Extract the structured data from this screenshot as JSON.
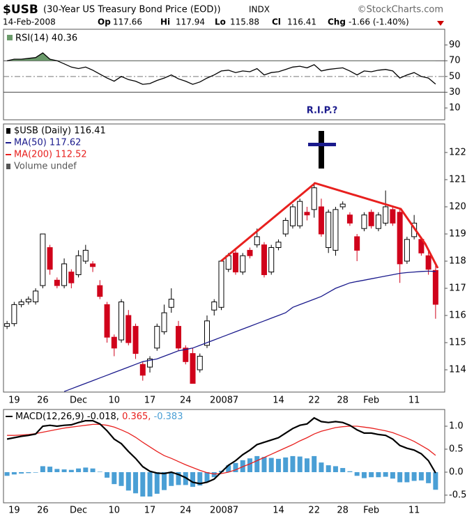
{
  "header": {
    "symbol": "$USB",
    "description": "(30-Year US Treasury Bond Price (EOD))",
    "exchange": "INDX",
    "copyright": "©StockCharts.com",
    "date": "14-Feb-2008",
    "quote": [
      {
        "label": "Op",
        "value": "117.66"
      },
      {
        "label": "Hi",
        "value": "117.94"
      },
      {
        "label": "Lo",
        "value": "115.88"
      },
      {
        "label": "Cl",
        "value": "116.41"
      },
      {
        "label": "Chg",
        "value": "-1.66 (-1.40%)"
      }
    ]
  },
  "categories": [
    null,
    "19",
    null,
    null,
    null,
    "26",
    null,
    null,
    null,
    null,
    "Dec",
    null,
    null,
    null,
    null,
    "10",
    null,
    null,
    null,
    null,
    "17",
    null,
    null,
    null,
    null,
    "24",
    null,
    null,
    null,
    null,
    "2008",
    null,
    "7",
    null,
    null,
    null,
    null,
    null,
    "14",
    null,
    null,
    null,
    null,
    "22",
    null,
    null,
    null,
    "28",
    null,
    null,
    null,
    "Feb",
    null,
    null,
    null,
    null,
    null,
    "11",
    null,
    null,
    null
  ],
  "chart_data": [
    {
      "type": "line",
      "legend": "RSI(14) 40.36",
      "ylim": [
        -5,
        110
      ],
      "yticks": [
        10,
        30,
        50,
        70,
        90
      ],
      "reference_lines": [
        30,
        50,
        70
      ],
      "fill_above": 70,
      "series": [
        {
          "color": "#000000",
          "values": [
            70,
            72,
            72,
            73,
            74,
            80,
            72,
            70,
            66,
            62,
            60,
            62,
            58,
            53,
            48,
            44,
            50,
            46,
            44,
            40,
            41,
            45,
            48,
            52,
            47,
            44,
            40,
            43,
            48,
            52,
            57,
            58,
            55,
            57,
            56,
            60,
            52,
            55,
            56,
            59,
            62,
            63,
            61,
            65,
            57,
            59,
            60,
            61,
            57,
            52,
            57,
            56,
            58,
            59,
            57,
            48,
            52,
            55,
            50,
            48,
            40.36
          ]
        }
      ]
    },
    {
      "type": "candlestick",
      "legend": [
        "$USB (Daily) 116.41",
        "MA(50) 117.62",
        "MA(200) 112.52",
        "Volume undef"
      ],
      "annotation": "R.I.P.?",
      "ylim": [
        113.18,
        123.05
      ],
      "yticks": [
        114,
        115,
        116,
        117,
        118,
        119,
        120,
        121,
        122
      ],
      "open": [
        115.6,
        115.7,
        116.4,
        116.5,
        116.5,
        117.1,
        118.5,
        117.3,
        117.1,
        117.6,
        117.5,
        118.0,
        117.9,
        117.1,
        116.4,
        115.2,
        115.1,
        116.0,
        115.6,
        114.2,
        114.1,
        114.8,
        115.4,
        116.3,
        115.6,
        114.8,
        114.6,
        114.0,
        114.9,
        116.2,
        116.3,
        117.7,
        118.3,
        117.6,
        118.4,
        118.6,
        118.6,
        117.6,
        118.5,
        119.0,
        119.3,
        119.3,
        119.8,
        119.9,
        120.0,
        118.5,
        118.4,
        120.0,
        119.7,
        118.9,
        119.2,
        119.8,
        119.2,
        119.4,
        119.9,
        119.8,
        118.0,
        118.9,
        118.8,
        118.2,
        117.66
      ],
      "high": [
        115.8,
        116.5,
        116.6,
        116.7,
        117.0,
        119.0,
        118.6,
        117.4,
        118.1,
        117.7,
        118.4,
        118.6,
        118.0,
        117.3,
        116.5,
        115.3,
        116.6,
        116.2,
        115.7,
        114.3,
        114.5,
        115.7,
        116.4,
        117.0,
        115.8,
        114.9,
        114.8,
        114.6,
        116.0,
        116.6,
        118.0,
        118.3,
        118.4,
        118.3,
        118.5,
        119.2,
        118.7,
        118.6,
        118.8,
        119.6,
        120.1,
        120.3,
        120.0,
        120.9,
        120.3,
        119.9,
        120.0,
        120.2,
        119.8,
        119.0,
        119.8,
        119.9,
        119.8,
        120.6,
        120.0,
        119.9,
        118.9,
        119.7,
        118.9,
        118.4,
        117.94
      ],
      "low": [
        115.5,
        115.6,
        116.3,
        116.4,
        116.4,
        117.0,
        117.5,
        117.0,
        117.0,
        117.0,
        117.4,
        117.9,
        117.6,
        116.6,
        115.0,
        114.5,
        115.0,
        114.9,
        114.4,
        113.6,
        113.9,
        114.7,
        115.3,
        116.1,
        114.7,
        114.2,
        113.5,
        113.9,
        114.8,
        116.0,
        116.2,
        117.6,
        117.5,
        117.5,
        118.1,
        118.5,
        117.4,
        117.5,
        118.4,
        118.9,
        119.2,
        119.2,
        119.5,
        119.6,
        118.9,
        118.3,
        118.2,
        119.9,
        119.3,
        118.0,
        119.1,
        119.2,
        119.1,
        119.3,
        119.3,
        117.2,
        117.9,
        118.8,
        118.2,
        117.5,
        115.88
      ],
      "close": [
        115.7,
        116.4,
        116.5,
        116.6,
        116.9,
        119.0,
        117.7,
        117.1,
        117.9,
        117.2,
        118.2,
        118.4,
        117.8,
        116.7,
        115.2,
        114.8,
        116.5,
        115.0,
        114.6,
        113.8,
        114.4,
        115.6,
        116.1,
        116.6,
        114.8,
        114.3,
        113.5,
        114.5,
        115.8,
        116.5,
        118.0,
        118.2,
        117.6,
        118.2,
        118.2,
        118.9,
        117.5,
        118.5,
        118.7,
        119.5,
        120.0,
        120.2,
        119.7,
        120.7,
        119.0,
        119.8,
        119.9,
        120.1,
        119.4,
        118.4,
        119.7,
        119.3,
        119.7,
        120.0,
        119.4,
        117.9,
        118.8,
        119.4,
        118.3,
        117.7,
        116.41
      ],
      "series": [
        {
          "color": "#1a1a8c",
          "values": [
            null,
            null,
            null,
            null,
            null,
            null,
            null,
            null,
            113.2,
            113.3,
            113.4,
            113.5,
            113.6,
            113.7,
            113.8,
            113.9,
            114.0,
            114.1,
            114.2,
            114.3,
            114.35,
            114.4,
            114.5,
            114.6,
            114.7,
            114.75,
            114.8,
            114.9,
            115.0,
            115.1,
            115.2,
            115.3,
            115.4,
            115.5,
            115.6,
            115.7,
            115.8,
            115.9,
            116.0,
            116.1,
            116.3,
            116.4,
            116.5,
            116.6,
            116.7,
            116.85,
            117.0,
            117.1,
            117.2,
            117.25,
            117.3,
            117.35,
            117.4,
            117.45,
            117.5,
            117.55,
            117.58,
            117.6,
            117.62,
            117.63,
            117.62
          ]
        }
      ]
    },
    {
      "type": "macd",
      "legend": {
        "title": "MACD(12,26,9)",
        "entries": [
          "-0.018,",
          "0.365,",
          "-0.383"
        ]
      },
      "ylim": [
        -0.667,
        1.364
      ],
      "yticks": [
        {
          "value": 1,
          "label": "1.0"
        },
        0.5,
        {
          "value": 0,
          "label": "0.0"
        },
        -0.5
      ],
      "series": [
        {
          "color": "#000000",
          "values": [
            0.72,
            0.75,
            0.78,
            0.8,
            0.83,
            1.0,
            1.02,
            1.0,
            1.02,
            1.03,
            1.08,
            1.12,
            1.12,
            1.05,
            0.9,
            0.72,
            0.62,
            0.45,
            0.3,
            0.12,
            0.02,
            -0.02,
            -0.03,
            0.0,
            -0.05,
            -0.12,
            -0.22,
            -0.25,
            -0.22,
            -0.15,
            0.0,
            0.15,
            0.25,
            0.38,
            0.48,
            0.6,
            0.65,
            0.7,
            0.75,
            0.85,
            0.95,
            1.02,
            1.05,
            1.18,
            1.1,
            1.08,
            1.1,
            1.08,
            1.02,
            0.92,
            0.85,
            0.85,
            0.82,
            0.8,
            0.72,
            0.58,
            0.52,
            0.48,
            0.4,
            0.25,
            -0.018
          ]
        },
        {
          "color": "#e8201e",
          "values": [
            0.8,
            0.8,
            0.81,
            0.82,
            0.84,
            0.87,
            0.9,
            0.93,
            0.96,
            0.98,
            1.0,
            1.02,
            1.04,
            1.04,
            1.02,
            0.98,
            0.92,
            0.85,
            0.76,
            0.65,
            0.55,
            0.45,
            0.36,
            0.3,
            0.23,
            0.16,
            0.1,
            0.04,
            -0.01,
            -0.04,
            -0.03,
            0.0,
            0.05,
            0.12,
            0.18,
            0.25,
            0.32,
            0.39,
            0.46,
            0.53,
            0.6,
            0.68,
            0.75,
            0.83,
            0.89,
            0.93,
            0.97,
            0.99,
            1.0,
            1.0,
            0.98,
            0.96,
            0.93,
            0.9,
            0.86,
            0.8,
            0.74,
            0.67,
            0.58,
            0.49,
            0.365
          ]
        },
        {
          "color": "#4a9fd5",
          "values": [
            -0.08,
            -0.05,
            -0.03,
            -0.02,
            -0.01,
            0.13,
            0.12,
            0.07,
            0.06,
            0.05,
            0.08,
            0.1,
            0.08,
            0.01,
            -0.12,
            -0.26,
            -0.3,
            -0.4,
            -0.46,
            -0.53,
            -0.53,
            -0.47,
            -0.39,
            -0.3,
            -0.28,
            -0.28,
            -0.32,
            -0.29,
            -0.21,
            -0.11,
            0.03,
            0.15,
            0.2,
            0.26,
            0.3,
            0.35,
            0.33,
            0.31,
            0.29,
            0.32,
            0.35,
            0.34,
            0.3,
            0.35,
            0.21,
            0.15,
            0.13,
            0.09,
            0.02,
            -0.08,
            -0.13,
            -0.11,
            -0.11,
            -0.1,
            -0.14,
            -0.22,
            -0.22,
            -0.19,
            -0.18,
            -0.24,
            -0.383
          ]
        }
      ]
    }
  ]
}
